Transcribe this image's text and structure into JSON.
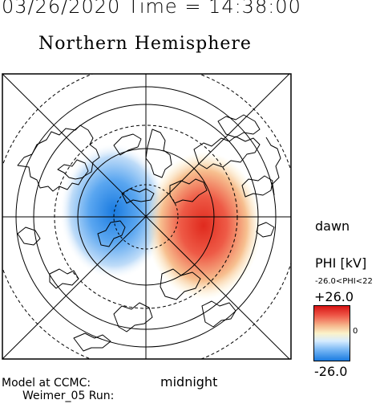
{
  "header": {
    "datetime": "03/26/2020 Time = 14:38:00",
    "title": "Northern Hemisphere"
  },
  "map": {
    "projection": "polar view of the northern hemisphere",
    "orientation_labels": {
      "dawn": "dawn",
      "midnight": "midnight"
    },
    "features": [
      "coastlines",
      "latitude circles",
      "meridian lines",
      "electric potential shading"
    ],
    "potential_pattern": {
      "negative_cell_side": "dusk",
      "positive_cell_side": "dawn"
    }
  },
  "colorbar": {
    "title": "PHI [kV]",
    "range_text": "-26.0<PHI<22",
    "max_label": "+26.0",
    "zero_label": "0",
    "min_label": "-26.0",
    "colors": {
      "max": "#d81414",
      "mid": "#fbf2c9",
      "min": "#1a7be0"
    }
  },
  "footer": {
    "model_label": "Model at CCMC:",
    "run_label": "Weimer_05 Run:"
  }
}
